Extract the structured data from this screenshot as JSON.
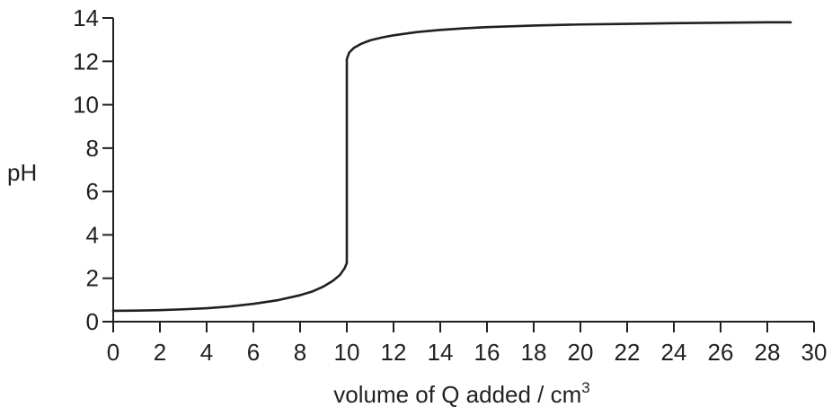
{
  "chart_data": {
    "type": "line",
    "title": "",
    "xlabel_main": "volume of Q added / cm",
    "xlabel_sup": "3",
    "ylabel": "pH",
    "xlim": [
      0,
      30
    ],
    "ylim": [
      0,
      14
    ],
    "x_ticks": [
      0,
      2,
      4,
      6,
      8,
      10,
      12,
      14,
      16,
      18,
      20,
      22,
      24,
      26,
      28,
      30
    ],
    "y_ticks": [
      0,
      2,
      4,
      6,
      8,
      10,
      12,
      14
    ],
    "grid": false,
    "legend": "none",
    "line_color": "#231f20",
    "series": [
      {
        "x": [
          0,
          1,
          2,
          3,
          4,
          5,
          6,
          7,
          8,
          8.5,
          9,
          9.4,
          9.7,
          9.9,
          10,
          10,
          10.1,
          10.3,
          10.6,
          11,
          11.5,
          12,
          13,
          14,
          15,
          16,
          18,
          20,
          22,
          24,
          26,
          28,
          29
        ],
        "y": [
          0.5,
          0.51,
          0.53,
          0.57,
          0.62,
          0.7,
          0.82,
          0.98,
          1.22,
          1.38,
          1.62,
          1.88,
          2.15,
          2.45,
          2.7,
          12.1,
          12.4,
          12.62,
          12.8,
          12.97,
          13.1,
          13.2,
          13.35,
          13.45,
          13.52,
          13.58,
          13.65,
          13.7,
          13.73,
          13.76,
          13.78,
          13.8,
          13.8
        ]
      }
    ]
  }
}
